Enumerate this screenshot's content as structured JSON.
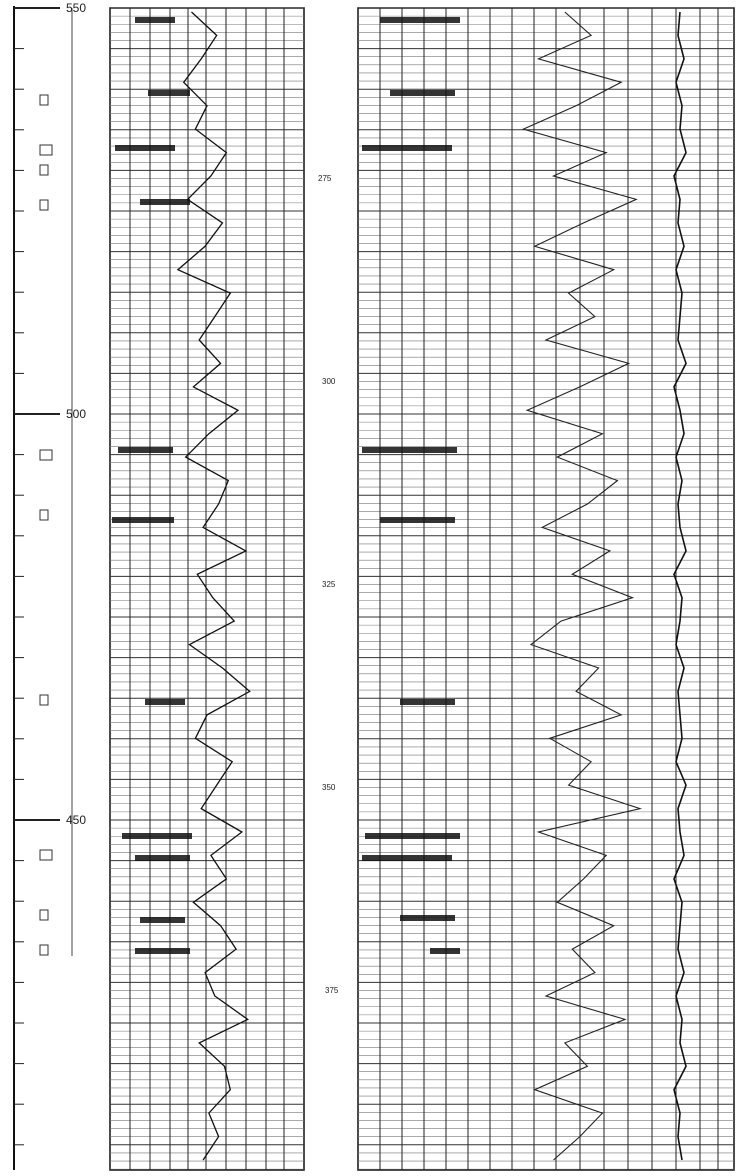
{
  "chart_data": {
    "type": "line",
    "title": "",
    "xlabel": "",
    "ylabel": "",
    "scale_left": {
      "labels": [
        "550",
        "500",
        "450"
      ],
      "values": [
        550,
        500,
        450
      ]
    },
    "depth_track": {
      "labels": [
        "275",
        "300",
        "325",
        "350",
        "375"
      ],
      "values": [
        275,
        300,
        325,
        350,
        375
      ]
    },
    "series": [
      {
        "track": "left",
        "values": [
          0.42,
          0.55,
          0.47,
          0.38,
          0.5,
          0.44,
          0.6,
          0.52,
          0.4,
          0.58,
          0.49,
          0.35,
          0.62,
          0.54,
          0.46,
          0.57,
          0.43,
          0.66,
          0.51,
          0.39,
          0.61,
          0.56,
          0.48,
          0.7,
          0.45,
          0.53,
          0.64,
          0.41,
          0.58,
          0.72,
          0.5,
          0.44,
          0.63,
          0.55,
          0.47,
          0.68,
          0.52,
          0.6,
          0.43,
          0.57,
          0.65,
          0.49,
          0.54,
          0.71,
          0.46,
          0.59,
          0.62,
          0.51,
          0.56,
          0.48
        ]
      },
      {
        "track": "right",
        "values": [
          0.55,
          0.62,
          0.48,
          0.7,
          0.58,
          0.44,
          0.66,
          0.52,
          0.74,
          0.6,
          0.47,
          0.68,
          0.56,
          0.63,
          0.5,
          0.72,
          0.59,
          0.45,
          0.65,
          0.53,
          0.69,
          0.61,
          0.49,
          0.67,
          0.57,
          0.73,
          0.54,
          0.46,
          0.64,
          0.58,
          0.7,
          0.51,
          0.62,
          0.56,
          0.75,
          0.48,
          0.66,
          0.6,
          0.53,
          0.68,
          0.57,
          0.63,
          0.5,
          0.71,
          0.55,
          0.61,
          0.47,
          0.65,
          0.59,
          0.52
        ]
      },
      {
        "track": "right",
        "values": [
          0.5,
          0.49,
          0.52,
          0.48,
          0.51,
          0.5,
          0.53,
          0.47,
          0.5,
          0.49,
          0.52,
          0.48,
          0.51,
          0.5,
          0.49,
          0.53,
          0.47,
          0.5,
          0.52,
          0.48,
          0.51,
          0.49,
          0.5,
          0.53,
          0.47,
          0.51,
          0.5,
          0.48,
          0.52,
          0.49,
          0.5,
          0.51,
          0.48,
          0.53,
          0.49,
          0.5,
          0.52,
          0.47,
          0.51,
          0.5,
          0.49,
          0.52,
          0.48,
          0.51,
          0.5,
          0.53,
          0.47,
          0.5,
          0.49,
          0.51
        ]
      }
    ],
    "grid": true
  }
}
